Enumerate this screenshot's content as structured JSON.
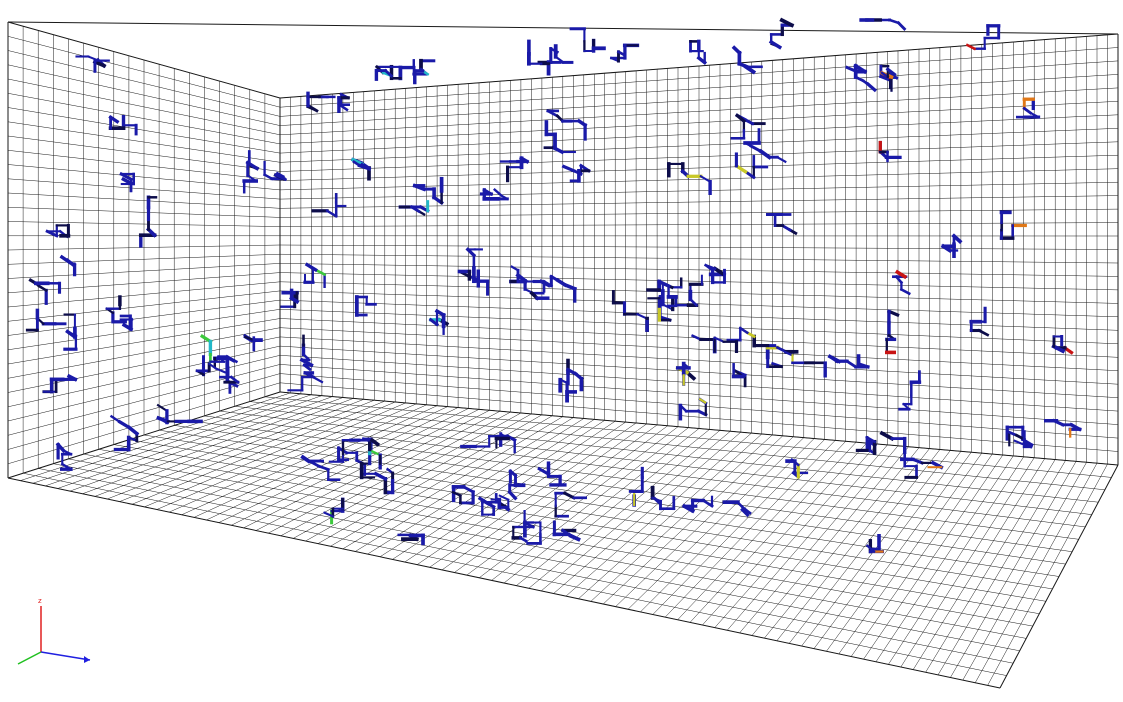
{
  "background": "#ffffff",
  "grid_color": "#1a1a1a",
  "colormap": {
    "low": "#1a1aa8",
    "dark": "#0d0d4a",
    "cyan": "#22b8c8",
    "green": "#3cc83c",
    "yellow": "#c8c828",
    "orange": "#e07818",
    "red": "#c81414"
  },
  "network": {
    "element_count_estimate": 900,
    "dominant_color": "low"
  },
  "axes_triad": {
    "x_color": "#2020e0",
    "y_color": "#20c020",
    "z_color": "#e02020",
    "z_label": "z"
  }
}
